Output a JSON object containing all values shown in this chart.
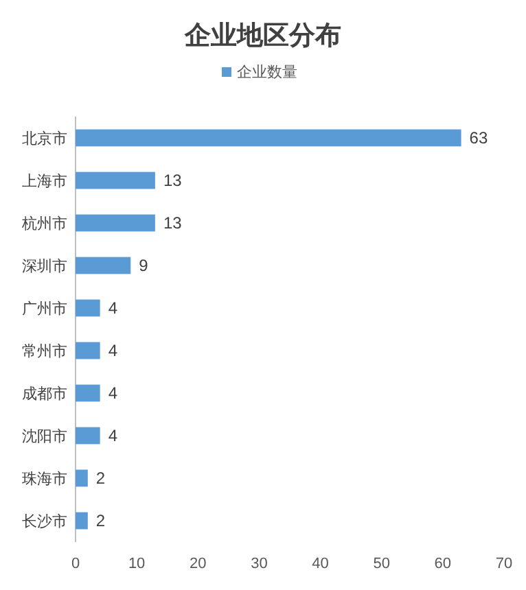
{
  "chart_data": {
    "type": "bar",
    "orientation": "horizontal",
    "title": "企业地区分布",
    "categories": [
      "北京市",
      "上海市",
      "杭州市",
      "深圳市",
      "广州市",
      "常州市",
      "成都市",
      "沈阳市",
      "珠海市",
      "长沙市"
    ],
    "series": [
      {
        "name": "企业数量",
        "color": "#5b9bd5",
        "values": [
          63,
          13,
          13,
          9,
          4,
          4,
          4,
          4,
          2,
          2
        ]
      }
    ],
    "xlim": [
      0,
      70
    ],
    "xticks": [
      0,
      10,
      20,
      30,
      40,
      50,
      60,
      70
    ],
    "data_labels": true,
    "legend": "top",
    "grid": false
  }
}
